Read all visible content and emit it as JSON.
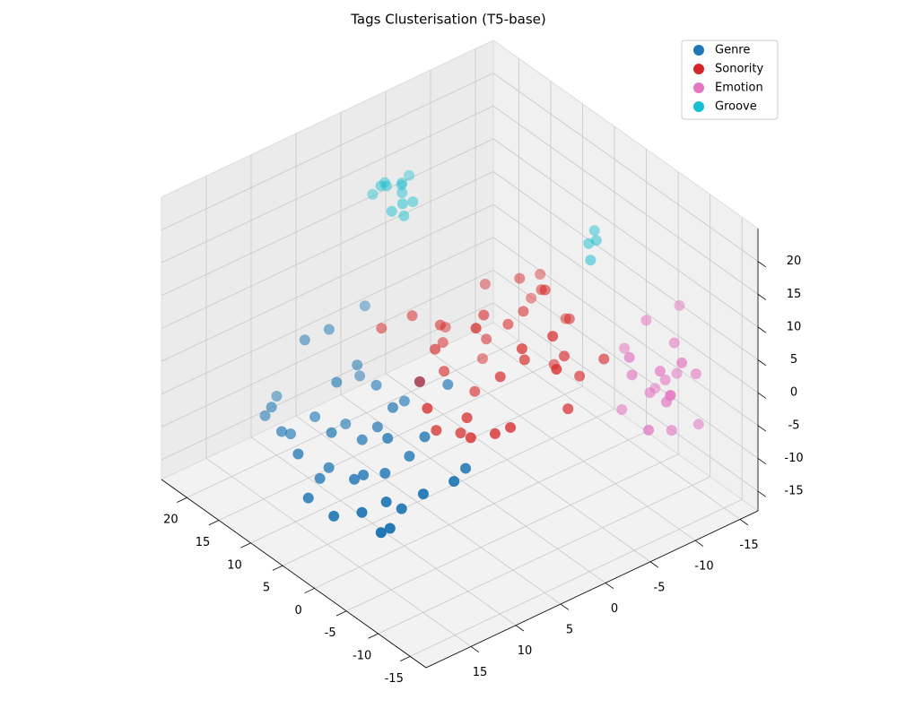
{
  "chart_data": {
    "type": "scatter3d",
    "title": "Tags Clusterisation (T5-base)",
    "xlim": [
      -17.5,
      24
    ],
    "ylim": [
      -17,
      20
    ],
    "zlim": [
      -18,
      25
    ],
    "xticks": [
      -15,
      -10,
      -5,
      0,
      5,
      10,
      15,
      20
    ],
    "yticks": [
      -15,
      -10,
      -5,
      0,
      5,
      10,
      15
    ],
    "zticks": [
      -15,
      -10,
      -5,
      0,
      5,
      10,
      15,
      20
    ],
    "grid": true,
    "legend": "upper right",
    "series": [
      {
        "name": "Genre",
        "color": "#1f77b4",
        "x": [
          3,
          5,
          8,
          -2,
          10,
          12,
          15,
          1,
          -4,
          6,
          9,
          14,
          0,
          4,
          7,
          -1,
          11,
          13,
          2,
          -3,
          16,
          17,
          18,
          15,
          6,
          3,
          -5,
          8,
          10,
          12,
          5,
          1,
          -2,
          9,
          14,
          20,
          19,
          16,
          7,
          4
        ],
        "y": [
          10,
          12,
          9,
          13,
          11,
          8,
          12,
          14,
          6,
          7,
          13,
          10,
          12,
          9,
          5,
          11,
          14,
          6,
          8,
          10,
          7,
          9,
          12,
          13,
          4,
          3,
          8,
          15,
          6,
          9,
          11,
          7,
          14,
          12,
          5,
          10,
          12,
          3,
          8,
          15
        ],
        "z": [
          -9,
          -10,
          -8,
          -12,
          -7,
          -9,
          -10,
          -11,
          -6,
          -3,
          -12,
          -8,
          -10,
          -5,
          -4,
          -11,
          -9,
          -2,
          -7,
          -8,
          2,
          1,
          -8,
          -9,
          -1,
          0,
          -6,
          -13,
          -3,
          -2,
          -10,
          -4,
          -12,
          -11,
          -5,
          -9,
          -10,
          3,
          -6,
          -13
        ]
      },
      {
        "name": "Sonority",
        "color": "#d62728",
        "x": [
          -1,
          2,
          5,
          -4,
          0,
          3,
          -6,
          7,
          1,
          -3,
          4,
          -2,
          6,
          -5,
          8,
          0,
          2,
          -7,
          3,
          -1,
          5,
          -4,
          1,
          9,
          -2,
          4,
          -6,
          0,
          6,
          -3,
          2,
          10,
          -1,
          3,
          -5,
          7,
          1,
          -2,
          4,
          12
        ],
        "y": [
          0,
          -3,
          2,
          -5,
          3,
          -1,
          -4,
          1,
          -6,
          2,
          -2,
          -7,
          4,
          -3,
          0,
          -8,
          5,
          -2,
          -5,
          -6,
          3,
          1,
          -4,
          -1,
          4,
          -7,
          -8,
          2,
          -3,
          -1,
          6,
          2,
          -5,
          0,
          -6,
          -4,
          3,
          -2,
          -8,
          4
        ],
        "z": [
          2,
          6,
          0,
          4,
          -3,
          8,
          -2,
          5,
          10,
          -4,
          3,
          7,
          -1,
          9,
          1,
          5,
          -5,
          6,
          11,
          0,
          4,
          -3,
          8,
          2,
          -4,
          6,
          3,
          10,
          -2,
          7,
          -1,
          5,
          12,
          -3,
          1,
          8,
          -6,
          4,
          9,
          3
        ]
      },
      {
        "name": "Emotion",
        "color": "#e377c2",
        "x": [
          -10,
          -12,
          -8,
          -14,
          -9,
          -11,
          -7,
          -13,
          -10,
          -6,
          -12,
          -9,
          -15,
          -8,
          -11,
          -7,
          -13,
          -10,
          -5,
          -9
        ],
        "y": [
          -12,
          -10,
          -14,
          -11,
          -9,
          -15,
          -12,
          -8,
          -13,
          -10,
          -14,
          -11,
          -9,
          -15,
          -12,
          -13,
          -10,
          -8,
          -11,
          -14
        ],
        "z": [
          0,
          4,
          -5,
          6,
          2,
          -8,
          7,
          -3,
          5,
          -6,
          1,
          -2,
          3,
          8,
          -7,
          -4,
          0,
          6,
          2,
          -1
        ]
      },
      {
        "name": "Groove",
        "color": "#17becf",
        "x": [
          13,
          14,
          12,
          15,
          13.5,
          12.5,
          14.5,
          13,
          11.5,
          15.5,
          14,
          12,
          -2,
          -1.5,
          -2.5,
          -1
        ],
        "y": [
          1,
          2,
          0.5,
          1.5,
          3,
          2.5,
          0,
          1,
          2,
          2.5,
          -0.5,
          1.5,
          -10,
          -9.5,
          -9,
          -10.5
        ],
        "z": [
          21,
          22,
          20,
          21.5,
          23,
          19.5,
          20.5,
          22.5,
          21,
          20,
          22,
          18.5,
          17,
          16.5,
          15,
          17.5
        ]
      }
    ]
  }
}
